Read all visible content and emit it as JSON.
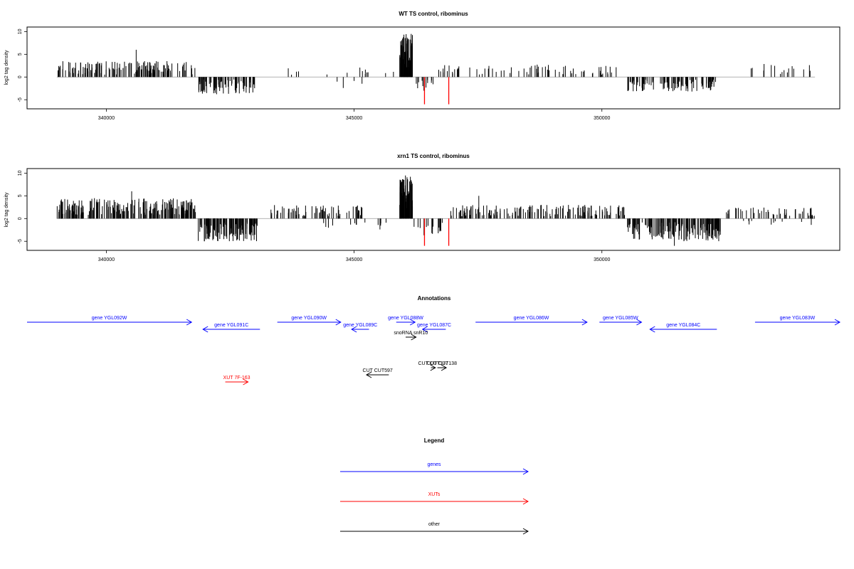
{
  "colors": {
    "gene": "#0000ff",
    "xut": "#ff0000",
    "other": "#000000",
    "bar": "#000000",
    "highlight": "#ff0000",
    "axis": "#000000",
    "zero": "#9a9a9a"
  },
  "chart_data": [
    {
      "type": "bar",
      "title": "WT TS control, ribominus",
      "ylabel": "log2 tag density",
      "xlim": [
        338400,
        354800
      ],
      "ylim": [
        -7,
        11
      ],
      "xticks": [
        340000,
        345000,
        350000
      ],
      "yticks": [
        10,
        5,
        0,
        -5
      ],
      "grid": false,
      "segments": [
        {
          "x0": 339000,
          "x1": 341800,
          "lo": 0.5,
          "hi": 3.5,
          "n": 150,
          "sign": 1,
          "pmax": 6
        },
        {
          "x0": 341850,
          "x1": 343000,
          "lo": -3.8,
          "hi": -0.5,
          "n": 75,
          "sign": -1
        },
        {
          "x0": 343300,
          "x1": 345900,
          "lo": 0.5,
          "hi": 2.2,
          "n": 14,
          "sign": 1
        },
        {
          "x0": 344200,
          "x1": 345200,
          "lo": -2.5,
          "hi": -0.5,
          "n": 4,
          "sign": -1
        },
        {
          "x0": 345920,
          "x1": 346180,
          "lo": 2,
          "hi": 9.5,
          "n": 60,
          "sign": 1
        },
        {
          "x0": 346200,
          "x1": 346600,
          "lo": -3.5,
          "hi": -0.5,
          "n": 12,
          "sign": -1
        },
        {
          "x0": 346700,
          "x1": 350400,
          "lo": 0.5,
          "hi": 2.8,
          "n": 70,
          "sign": 1
        },
        {
          "x0": 350500,
          "x1": 352300,
          "lo": -3.2,
          "hi": -0.5,
          "n": 100,
          "sign": -1
        },
        {
          "x0": 353000,
          "x1": 354300,
          "lo": 0.5,
          "hi": 3,
          "n": 16,
          "sign": 1
        }
      ],
      "highlight_bars": [
        {
          "x": 346420,
          "y": -6
        },
        {
          "x": 346910,
          "y": -6
        }
      ]
    },
    {
      "type": "bar",
      "title": "xrn1 TS control, ribominus",
      "ylabel": "log2 tag density",
      "xlim": [
        338400,
        354800
      ],
      "ylim": [
        -7,
        11
      ],
      "xticks": [
        340000,
        345000,
        350000
      ],
      "yticks": [
        10,
        5,
        0,
        -5
      ],
      "grid": false,
      "segments": [
        {
          "x0": 339000,
          "x1": 341800,
          "lo": 0.8,
          "hi": 4.5,
          "n": 220,
          "sign": 1,
          "pmax": 6
        },
        {
          "x0": 341850,
          "x1": 343050,
          "lo": -5,
          "hi": -0.8,
          "n": 120,
          "sign": -1
        },
        {
          "x0": 343300,
          "x1": 345200,
          "lo": 0.5,
          "hi": 3,
          "n": 70,
          "sign": 1
        },
        {
          "x0": 344200,
          "x1": 345800,
          "lo": -2.5,
          "hi": -0.5,
          "n": 14,
          "sign": -1
        },
        {
          "x0": 345920,
          "x1": 346180,
          "lo": 2,
          "hi": 9.5,
          "n": 60,
          "sign": 1
        },
        {
          "x0": 346200,
          "x1": 346900,
          "lo": -4,
          "hi": -0.5,
          "n": 16,
          "sign": -1
        },
        {
          "x0": 346950,
          "x1": 350500,
          "lo": 0.5,
          "hi": 3,
          "n": 150,
          "sign": 1,
          "pmax": 5
        },
        {
          "x0": 350500,
          "x1": 352400,
          "lo": -5,
          "hi": -0.8,
          "n": 170,
          "sign": -1,
          "pmax": -6
        },
        {
          "x0": 352500,
          "x1": 354300,
          "lo": 0.5,
          "hi": 2.5,
          "n": 50,
          "sign": 1
        },
        {
          "x0": 352500,
          "x1": 354300,
          "lo": -1.5,
          "hi": -0.5,
          "n": 10,
          "sign": -1
        }
      ],
      "highlight_bars": [
        {
          "x": 346420,
          "y": -6
        },
        {
          "x": 346910,
          "y": -6
        }
      ]
    }
  ],
  "annotations": {
    "title": "Annotations",
    "features": [
      {
        "label": "gene YGL092W",
        "kind": "gene",
        "strand": "+",
        "start": 338400,
        "end": 341720,
        "row": 0
      },
      {
        "label": "gene YGL091C",
        "kind": "gene",
        "strand": "-",
        "start": 341950,
        "end": 343100,
        "row": 1
      },
      {
        "label": "gene YGL090W",
        "kind": "gene",
        "strand": "+",
        "start": 343450,
        "end": 344730,
        "row": 0
      },
      {
        "label": "gene YGL089C",
        "kind": "gene",
        "strand": "-",
        "start": 344950,
        "end": 345300,
        "row": 1
      },
      {
        "label": "gene YGL088W",
        "kind": "gene",
        "strand": "+",
        "start": 345850,
        "end": 346230,
        "row": 0
      },
      {
        "label": "gene YGL087C",
        "kind": "gene",
        "strand": "-",
        "start": 346380,
        "end": 346850,
        "row": 1
      },
      {
        "label": "gene YGL086W",
        "kind": "gene",
        "strand": "+",
        "start": 347450,
        "end": 349700,
        "row": 0
      },
      {
        "label": "gene YGL085W",
        "kind": "gene",
        "strand": "+",
        "start": 349950,
        "end": 350800,
        "row": 0
      },
      {
        "label": "gene YGL084C",
        "kind": "gene",
        "strand": "-",
        "start": 350970,
        "end": 352320,
        "row": 1
      },
      {
        "label": "gene YGL083W",
        "kind": "gene",
        "strand": "+",
        "start": 353090,
        "end": 354800,
        "row": 0
      },
      {
        "label": "snoRNA snR10",
        "kind": "other",
        "strand": "+",
        "start": 346040,
        "end": 346250,
        "row": 2
      },
      {
        "label": "CUT CUT597",
        "kind": "other",
        "strand": "-",
        "start": 345250,
        "end": 345700,
        "row": 4
      },
      {
        "label": "CUT CUT137",
        "kind": "other",
        "strand": "+",
        "start": 346550,
        "end": 346640,
        "row": 3
      },
      {
        "label": "CUT CUT138",
        "kind": "other",
        "strand": "+",
        "start": 346680,
        "end": 346860,
        "row": 3
      },
      {
        "label": "XUT 7F-163",
        "kind": "xut",
        "strand": "+",
        "start": 342400,
        "end": 342860,
        "row": 5
      }
    ]
  },
  "legend": {
    "title": "Legend",
    "entries": [
      {
        "label": "genes",
        "kind": "gene"
      },
      {
        "label": "XUTs",
        "kind": "xut"
      },
      {
        "label": "other",
        "kind": "other"
      }
    ]
  }
}
